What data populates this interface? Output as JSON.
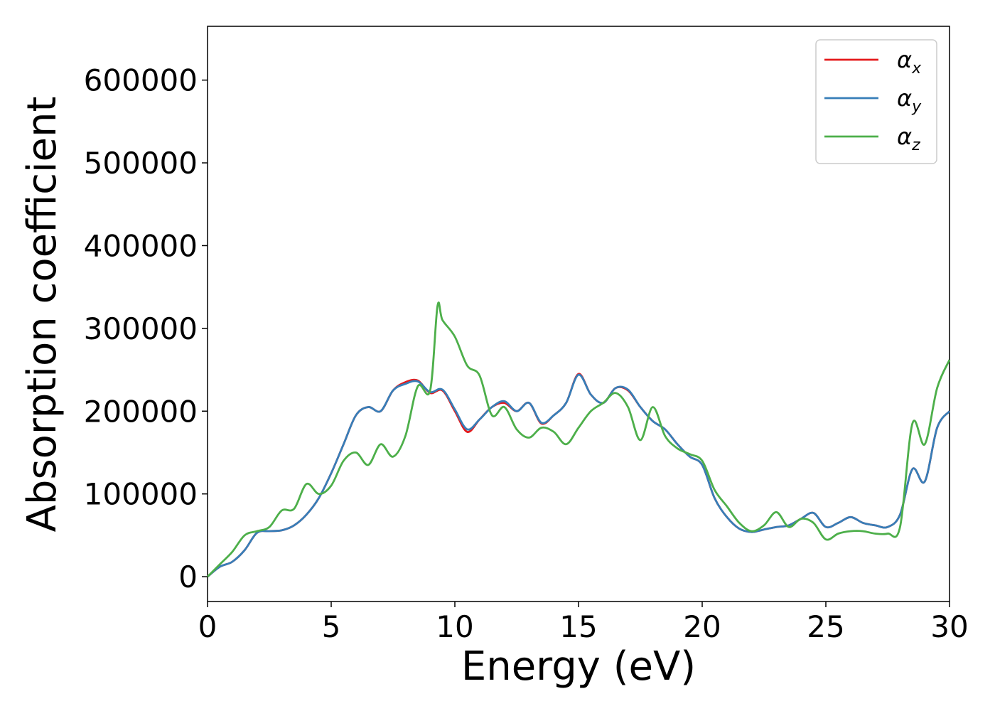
{
  "chart_data": {
    "type": "line",
    "title": "",
    "xlabel": "Energy (eV)",
    "ylabel": "Absorption coefficient",
    "xlim": [
      0,
      30
    ],
    "ylim": [
      -30000,
      665000
    ],
    "xticks": [
      0,
      5,
      10,
      15,
      20,
      25,
      30
    ],
    "yticks": [
      0,
      100000,
      200000,
      300000,
      400000,
      500000,
      600000
    ],
    "grid": false,
    "legend_position": "top-right",
    "series": [
      {
        "name": "αx",
        "legend_main": "α",
        "legend_sub": "x",
        "color": "#e41a1c",
        "x": [
          0,
          0.5,
          1,
          1.5,
          2,
          2.5,
          3,
          3.5,
          4,
          4.5,
          5,
          5.5,
          6,
          6.5,
          7,
          7.5,
          8,
          8.5,
          9,
          9.5,
          10,
          10.5,
          11,
          11.5,
          12,
          12.5,
          13,
          13.5,
          14,
          14.5,
          15,
          15.5,
          16,
          16.5,
          17,
          17.5,
          18,
          18.5,
          19,
          19.5,
          20,
          20.5,
          21,
          21.5,
          22,
          22.5,
          23,
          23.5,
          24,
          24.5,
          25,
          25.5,
          26,
          26.5,
          27,
          27.5,
          28,
          28.5,
          29,
          29.5,
          30
        ],
        "y": [
          0,
          12000,
          18000,
          32000,
          53000,
          55000,
          56000,
          62000,
          75000,
          95000,
          125000,
          160000,
          195000,
          205000,
          200000,
          225000,
          235000,
          237000,
          222000,
          225000,
          200000,
          175000,
          190000,
          205000,
          210000,
          200000,
          210000,
          185000,
          195000,
          210000,
          245000,
          220000,
          210000,
          228000,
          225000,
          205000,
          188000,
          178000,
          160000,
          145000,
          135000,
          95000,
          72000,
          58000,
          54000,
          57000,
          60000,
          62000,
          70000,
          77000,
          60000,
          65000,
          72000,
          65000,
          62000,
          60000,
          75000,
          130000,
          115000,
          180000,
          200000
        ]
      },
      {
        "name": "αy",
        "legend_main": "α",
        "legend_sub": "y",
        "color": "#377eb8",
        "x": [
          0,
          0.5,
          1,
          1.5,
          2,
          2.5,
          3,
          3.5,
          4,
          4.5,
          5,
          5.5,
          6,
          6.5,
          7,
          7.5,
          8,
          8.5,
          9,
          9.5,
          10,
          10.5,
          11,
          11.5,
          12,
          12.5,
          13,
          13.5,
          14,
          14.5,
          15,
          15.5,
          16,
          16.5,
          17,
          17.5,
          18,
          18.5,
          19,
          19.5,
          20,
          20.5,
          21,
          21.5,
          22,
          22.5,
          23,
          23.5,
          24,
          24.5,
          25,
          25.5,
          26,
          26.5,
          27,
          27.5,
          28,
          28.5,
          29,
          29.5,
          30
        ],
        "y": [
          0,
          12000,
          18000,
          32000,
          53000,
          55000,
          56000,
          62000,
          75000,
          95000,
          125000,
          160000,
          195000,
          205000,
          200000,
          225000,
          233000,
          236000,
          223000,
          226000,
          202000,
          178000,
          190000,
          205000,
          212000,
          200000,
          210000,
          186000,
          195000,
          210000,
          244000,
          220000,
          210000,
          228000,
          226000,
          205000,
          188000,
          178000,
          160000,
          145000,
          135000,
          95000,
          72000,
          58000,
          54000,
          57000,
          60000,
          62000,
          70000,
          77000,
          60000,
          65000,
          72000,
          65000,
          62000,
          60000,
          75000,
          130000,
          115000,
          180000,
          200000
        ]
      },
      {
        "name": "αz",
        "legend_main": "α",
        "legend_sub": "z",
        "color": "#4daf4a",
        "x": [
          0,
          0.5,
          1,
          1.5,
          2,
          2.5,
          3,
          3.5,
          4,
          4.5,
          5,
          5.5,
          6,
          6.5,
          7,
          7.5,
          8,
          8.5,
          9,
          9.3,
          9.5,
          10,
          10.5,
          11,
          11.5,
          12,
          12.5,
          13,
          13.5,
          14,
          14.5,
          15,
          15.5,
          16,
          16.5,
          17,
          17.5,
          18,
          18.5,
          19,
          19.5,
          20,
          20.5,
          21,
          21.5,
          22,
          22.5,
          23,
          23.5,
          24,
          24.5,
          25,
          25.5,
          26,
          26.5,
          27,
          27.5,
          28,
          28.5,
          29,
          29.5,
          30
        ],
        "y": [
          0,
          15000,
          30000,
          50000,
          55000,
          60000,
          80000,
          82000,
          112000,
          100000,
          110000,
          140000,
          150000,
          135000,
          160000,
          145000,
          170000,
          230000,
          225000,
          327000,
          310000,
          290000,
          255000,
          243000,
          195000,
          205000,
          178000,
          168000,
          180000,
          175000,
          160000,
          180000,
          200000,
          210000,
          222000,
          205000,
          165000,
          205000,
          170000,
          155000,
          148000,
          140000,
          105000,
          85000,
          65000,
          55000,
          62000,
          78000,
          60000,
          70000,
          65000,
          45000,
          52000,
          55000,
          55000,
          52000,
          52000,
          60000,
          185000,
          160000,
          228000,
          262000
        ]
      }
    ]
  }
}
